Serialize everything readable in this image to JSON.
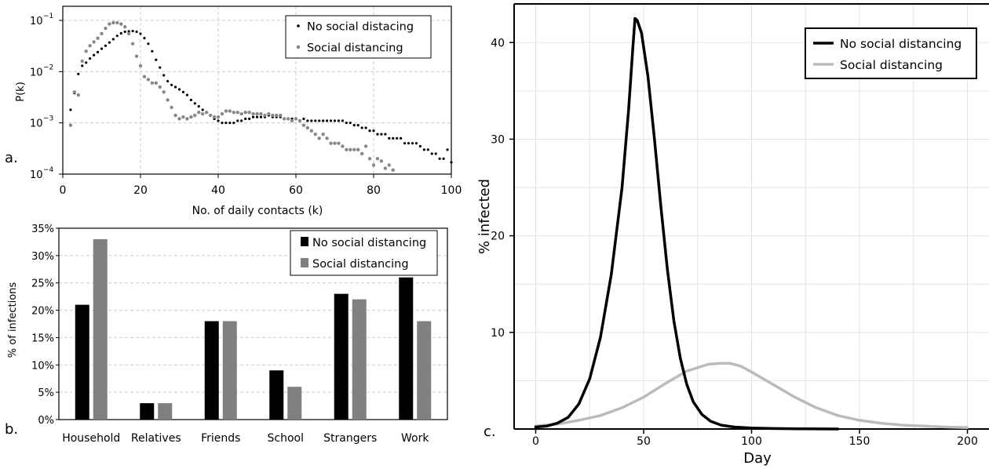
{
  "chart_data": [
    {
      "panel_label": "a.",
      "type": "scatter",
      "xlabel": "No. of daily contacts (k)",
      "ylabel": "P(k)",
      "xlim": [
        0,
        100
      ],
      "ylim": [
        0.0001,
        0.1
      ],
      "yscale": "log",
      "x_ticks": [
        "0",
        "20",
        "40",
        "60",
        "80",
        "100"
      ],
      "y_tick_base": [
        "10",
        "10",
        "10",
        "10"
      ],
      "y_tick_exp": [
        "−1",
        "−2",
        "−3",
        "−4"
      ],
      "grid": "dashed-horizontal-and-vertical",
      "legend_position": "top-right",
      "series": [
        {
          "name": "No social distacing",
          "color": "#000000",
          "points": [
            [
              2,
              0.0018
            ],
            [
              3,
              0.0038
            ],
            [
              4,
              0.009
            ],
            [
              5,
              0.013
            ],
            [
              6,
              0.015
            ],
            [
              7,
              0.018
            ],
            [
              8,
              0.021
            ],
            [
              9,
              0.024
            ],
            [
              10,
              0.028
            ],
            [
              11,
              0.032
            ],
            [
              12,
              0.037
            ],
            [
              13,
              0.043
            ],
            [
              14,
              0.05
            ],
            [
              15,
              0.056
            ],
            [
              16,
              0.06
            ],
            [
              17,
              0.061
            ],
            [
              18,
              0.062
            ],
            [
              19,
              0.06
            ],
            [
              20,
              0.055
            ],
            [
              21,
              0.045
            ],
            [
              22,
              0.035
            ],
            [
              23,
              0.025
            ],
            [
              24,
              0.017
            ],
            [
              25,
              0.012
            ],
            [
              26,
              0.0085
            ],
            [
              27,
              0.0065
            ],
            [
              28,
              0.0055
            ],
            [
              29,
              0.005
            ],
            [
              30,
              0.0045
            ],
            [
              31,
              0.004
            ],
            [
              32,
              0.0035
            ],
            [
              33,
              0.0028
            ],
            [
              34,
              0.0024
            ],
            [
              35,
              0.0021
            ],
            [
              36,
              0.0018
            ],
            [
              37,
              0.0016
            ],
            [
              38,
              0.0014
            ],
            [
              39,
              0.0012
            ],
            [
              40,
              0.0011
            ],
            [
              41,
              0.001
            ],
            [
              42,
              0.001
            ],
            [
              43,
              0.001
            ],
            [
              44,
              0.001
            ],
            [
              45,
              0.0011
            ],
            [
              46,
              0.0011
            ],
            [
              47,
              0.0012
            ],
            [
              48,
              0.0012
            ],
            [
              49,
              0.0013
            ],
            [
              50,
              0.0013
            ],
            [
              51,
              0.0013
            ],
            [
              52,
              0.0013
            ],
            [
              53,
              0.0014
            ],
            [
              54,
              0.0013
            ],
            [
              55,
              0.0013
            ],
            [
              56,
              0.0013
            ],
            [
              57,
              0.0012
            ],
            [
              58,
              0.0012
            ],
            [
              59,
              0.0012
            ],
            [
              60,
              0.0012
            ],
            [
              61,
              0.0011
            ],
            [
              62,
              0.0012
            ],
            [
              63,
              0.0011
            ],
            [
              64,
              0.0011
            ],
            [
              65,
              0.0011
            ],
            [
              66,
              0.0011
            ],
            [
              67,
              0.0011
            ],
            [
              68,
              0.0011
            ],
            [
              69,
              0.0011
            ],
            [
              70,
              0.0011
            ],
            [
              71,
              0.0011
            ],
            [
              72,
              0.0011
            ],
            [
              73,
              0.001
            ],
            [
              74,
              0.001
            ],
            [
              75,
              0.0009
            ],
            [
              76,
              0.0009
            ],
            [
              77,
              0.0008
            ],
            [
              78,
              0.0008
            ],
            [
              79,
              0.0007
            ],
            [
              80,
              0.0007
            ],
            [
              81,
              0.0006
            ],
            [
              82,
              0.0006
            ],
            [
              83,
              0.0006
            ],
            [
              84,
              0.0005
            ],
            [
              85,
              0.0005
            ],
            [
              86,
              0.0005
            ],
            [
              87,
              0.0005
            ],
            [
              88,
              0.0004
            ],
            [
              89,
              0.0004
            ],
            [
              90,
              0.0004
            ],
            [
              91,
              0.0004
            ],
            [
              92,
              0.00035
            ],
            [
              93,
              0.0003
            ],
            [
              94,
              0.0003
            ],
            [
              95,
              0.00025
            ],
            [
              96,
              0.00025
            ],
            [
              97,
              0.0002
            ],
            [
              98,
              0.0002
            ],
            [
              99,
              0.0003
            ],
            [
              100,
              0.00017
            ]
          ]
        },
        {
          "name": "Social distancing",
          "color": "#888888",
          "points": [
            [
              2,
              0.0009
            ],
            [
              3,
              0.004
            ],
            [
              4,
              0.0035
            ],
            [
              5,
              0.016
            ],
            [
              6,
              0.025
            ],
            [
              7,
              0.032
            ],
            [
              8,
              0.038
            ],
            [
              9,
              0.045
            ],
            [
              10,
              0.055
            ],
            [
              11,
              0.07
            ],
            [
              12,
              0.085
            ],
            [
              13,
              0.09
            ],
            [
              14,
              0.09
            ],
            [
              15,
              0.085
            ],
            [
              16,
              0.075
            ],
            [
              17,
              0.055
            ],
            [
              18,
              0.035
            ],
            [
              19,
              0.02
            ],
            [
              20,
              0.013
            ],
            [
              21,
              0.008
            ],
            [
              22,
              0.007
            ],
            [
              23,
              0.006
            ],
            [
              24,
              0.006
            ],
            [
              25,
              0.005
            ],
            [
              26,
              0.004
            ],
            [
              27,
              0.0028
            ],
            [
              28,
              0.002
            ],
            [
              29,
              0.0014
            ],
            [
              30,
              0.0012
            ],
            [
              31,
              0.0013
            ],
            [
              32,
              0.0012
            ],
            [
              33,
              0.0013
            ],
            [
              34,
              0.0014
            ],
            [
              35,
              0.0016
            ],
            [
              36,
              0.0015
            ],
            [
              37,
              0.0016
            ],
            [
              38,
              0.0014
            ],
            [
              39,
              0.0013
            ],
            [
              40,
              0.0013
            ],
            [
              41,
              0.0015
            ],
            [
              42,
              0.0017
            ],
            [
              43,
              0.0017
            ],
            [
              44,
              0.0016
            ],
            [
              45,
              0.0016
            ],
            [
              46,
              0.0015
            ],
            [
              47,
              0.0016
            ],
            [
              48,
              0.0016
            ],
            [
              49,
              0.0015
            ],
            [
              50,
              0.0015
            ],
            [
              51,
              0.0015
            ],
            [
              52,
              0.0014
            ],
            [
              53,
              0.0015
            ],
            [
              54,
              0.0014
            ],
            [
              55,
              0.0014
            ],
            [
              56,
              0.0014
            ],
            [
              57,
              0.0012
            ],
            [
              58,
              0.0012
            ],
            [
              59,
              0.0011
            ],
            [
              60,
              0.0012
            ],
            [
              61,
              0.0011
            ],
            [
              62,
              0.0009
            ],
            [
              63,
              0.0008
            ],
            [
              64,
              0.0007
            ],
            [
              65,
              0.0006
            ],
            [
              66,
              0.0005
            ],
            [
              67,
              0.0006
            ],
            [
              68,
              0.0005
            ],
            [
              69,
              0.0004
            ],
            [
              70,
              0.0004
            ],
            [
              71,
              0.0004
            ],
            [
              72,
              0.00035
            ],
            [
              73,
              0.0003
            ],
            [
              74,
              0.0003
            ],
            [
              75,
              0.0003
            ],
            [
              76,
              0.0003
            ],
            [
              77,
              0.00025
            ],
            [
              78,
              0.00035
            ],
            [
              79,
              0.0002
            ],
            [
              80,
              0.00015
            ],
            [
              81,
              0.0002
            ],
            [
              82,
              0.00018
            ],
            [
              83,
              0.00013
            ],
            [
              84,
              0.00015
            ],
            [
              85,
              0.00012
            ]
          ]
        }
      ]
    },
    {
      "panel_label": "b.",
      "type": "bar",
      "ylabel": "% of infections",
      "ylim": [
        0,
        35
      ],
      "y_ticks": [
        "0%",
        "5%",
        "10%",
        "15%",
        "20%",
        "25%",
        "30%",
        "35%"
      ],
      "categories": [
        "Household",
        "Relatives",
        "Friends",
        "School",
        "Strangers",
        "Work"
      ],
      "legend_position": "top-right",
      "series": [
        {
          "name": "No social distancing",
          "color": "#000000",
          "values": [
            21,
            3,
            18,
            9,
            23,
            26
          ]
        },
        {
          "name": "Social distancing",
          "color": "#808080",
          "values": [
            33,
            3,
            18,
            6,
            22,
            18
          ]
        }
      ]
    },
    {
      "panel_label": "c.",
      "type": "line",
      "xlabel": "Day",
      "ylabel": "% infected",
      "xlim": [
        -10,
        210
      ],
      "ylim": [
        0,
        44
      ],
      "x_ticks": [
        "0",
        "50",
        "100",
        "150",
        "200"
      ],
      "y_ticks": [
        "10",
        "20",
        "30",
        "40"
      ],
      "grid": "on",
      "legend_position": "top-right",
      "series": [
        {
          "name": "No social distancing",
          "color": "#000000",
          "points": [
            [
              0,
              0.2
            ],
            [
              5,
              0.3
            ],
            [
              10,
              0.6
            ],
            [
              15,
              1.2
            ],
            [
              20,
              2.6
            ],
            [
              25,
              5.2
            ],
            [
              30,
              9.5
            ],
            [
              35,
              16
            ],
            [
              40,
              25
            ],
            [
              43,
              33
            ],
            [
              45,
              39.5
            ],
            [
              46,
              42.5
            ],
            [
              47,
              42.3
            ],
            [
              49,
              41
            ],
            [
              52,
              36.5
            ],
            [
              55,
              30
            ],
            [
              58,
              23
            ],
            [
              61,
              16.5
            ],
            [
              64,
              11.2
            ],
            [
              67,
              7.3
            ],
            [
              70,
              4.6
            ],
            [
              73,
              2.8
            ],
            [
              77,
              1.5
            ],
            [
              81,
              0.8
            ],
            [
              86,
              0.4
            ],
            [
              92,
              0.2
            ],
            [
              100,
              0.1
            ],
            [
              110,
              0.05
            ],
            [
              125,
              0.02
            ],
            [
              140,
              0
            ]
          ]
        },
        {
          "name": "Social distancing",
          "color": "#bbbbbb",
          "points": [
            [
              0,
              0.3
            ],
            [
              10,
              0.5
            ],
            [
              20,
              0.9
            ],
            [
              30,
              1.4
            ],
            [
              40,
              2.2
            ],
            [
              50,
              3.3
            ],
            [
              60,
              4.7
            ],
            [
              70,
              6
            ],
            [
              80,
              6.7
            ],
            [
              85,
              6.8
            ],
            [
              90,
              6.8
            ],
            [
              95,
              6.5
            ],
            [
              100,
              5.9
            ],
            [
              110,
              4.6
            ],
            [
              120,
              3.3
            ],
            [
              130,
              2.2
            ],
            [
              140,
              1.4
            ],
            [
              150,
              0.9
            ],
            [
              160,
              0.6
            ],
            [
              170,
              0.4
            ],
            [
              180,
              0.3
            ],
            [
              190,
              0.2
            ],
            [
              200,
              0.15
            ]
          ]
        }
      ]
    }
  ]
}
